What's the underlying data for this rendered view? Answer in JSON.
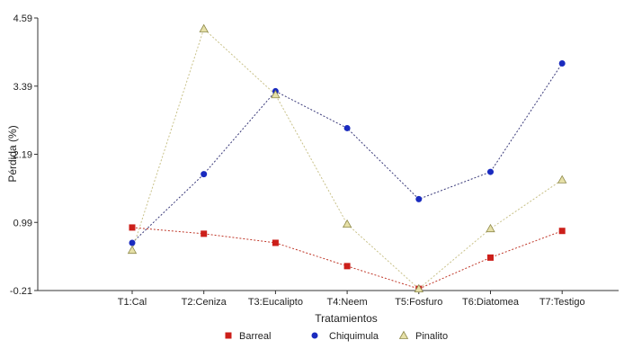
{
  "chart_data": {
    "type": "line",
    "xlabel": "Tratamientos",
    "ylabel": "Pérdida (%)",
    "categories": [
      "T1:Cal",
      "T2:Ceniza",
      "T3:Eucalipto",
      "T4:Neem",
      "T5:Fosfuro",
      "T6:Diatomea",
      "T7:Testigo"
    ],
    "yticks": [
      "-0.21",
      "0.99",
      "2.19",
      "3.39",
      "4.59"
    ],
    "ylim": [
      -0.21,
      4.59
    ],
    "grid": false,
    "legend_position": "bottom",
    "series": [
      {
        "name": "Barreal",
        "marker": "square",
        "color": "#cc1f1a",
        "line_color": "#c0392b",
        "values": [
          0.9,
          0.79,
          0.63,
          0.22,
          -0.18,
          0.37,
          0.84
        ]
      },
      {
        "name": "Chiquimula",
        "marker": "circle",
        "color": "#1a2bbf",
        "line_color": "#3a3a7a",
        "values": [
          0.63,
          1.84,
          3.3,
          2.65,
          1.4,
          1.88,
          3.79
        ]
      },
      {
        "name": "Pinalito",
        "marker": "triangle",
        "color": "#e6e0a8",
        "line_color": "#c9c28a",
        "values": [
          0.5,
          4.4,
          3.24,
          0.96,
          -0.18,
          0.88,
          1.74
        ]
      }
    ]
  }
}
